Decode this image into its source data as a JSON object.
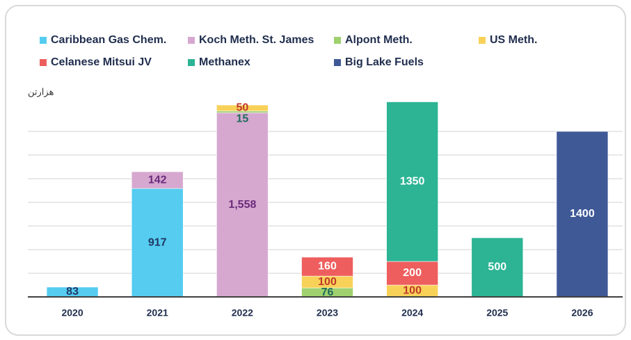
{
  "chart_data": {
    "type": "stacked_bar",
    "unit_label": "هزارتن",
    "categories": [
      "2020",
      "2021",
      "2022",
      "2023",
      "2024",
      "2025",
      "2026"
    ],
    "series": [
      {
        "name": "Caribbean Gas Chem.",
        "color": "#55ccf0",
        "label_color": "#1f3864",
        "values": [
          83,
          917,
          null,
          null,
          null,
          null,
          null
        ]
      },
      {
        "name": "Koch Meth. St. James",
        "color": "#d6a8d0",
        "label_color": "#6a2c7a",
        "values": [
          null,
          142,
          1558,
          null,
          null,
          null,
          null
        ],
        "value_labels": [
          null,
          "142",
          "1,558",
          null,
          null,
          null,
          null
        ]
      },
      {
        "name": "Alpont Meth.",
        "color": "#9fd16e",
        "label_color": "#1e6b5a",
        "values": [
          null,
          null,
          15,
          76,
          null,
          null,
          null
        ]
      },
      {
        "name": "US Meth.",
        "color": "#f8d158",
        "label_color": "#c0392b",
        "values": [
          null,
          null,
          50,
          100,
          100,
          null,
          null
        ]
      },
      {
        "name": "Celanese Mitsui JV",
        "color": "#ee5e5e",
        "label_color": "#ffffff",
        "values": [
          null,
          null,
          null,
          160,
          200,
          null,
          null
        ]
      },
      {
        "name": "Methanex",
        "color": "#2cb494",
        "label_color": "#ffffff",
        "values": [
          null,
          null,
          null,
          null,
          1350,
          500,
          null
        ]
      },
      {
        "name": "Big Lake Fuels",
        "color": "#3f5997",
        "label_color": "#ffffff",
        "values": [
          null,
          null,
          null,
          null,
          null,
          null,
          1400
        ]
      }
    ],
    "ylim": [
      0,
      1800
    ],
    "yticks": [
      0,
      200,
      400,
      600,
      800,
      1000,
      1200,
      1400
    ],
    "grid": true
  }
}
